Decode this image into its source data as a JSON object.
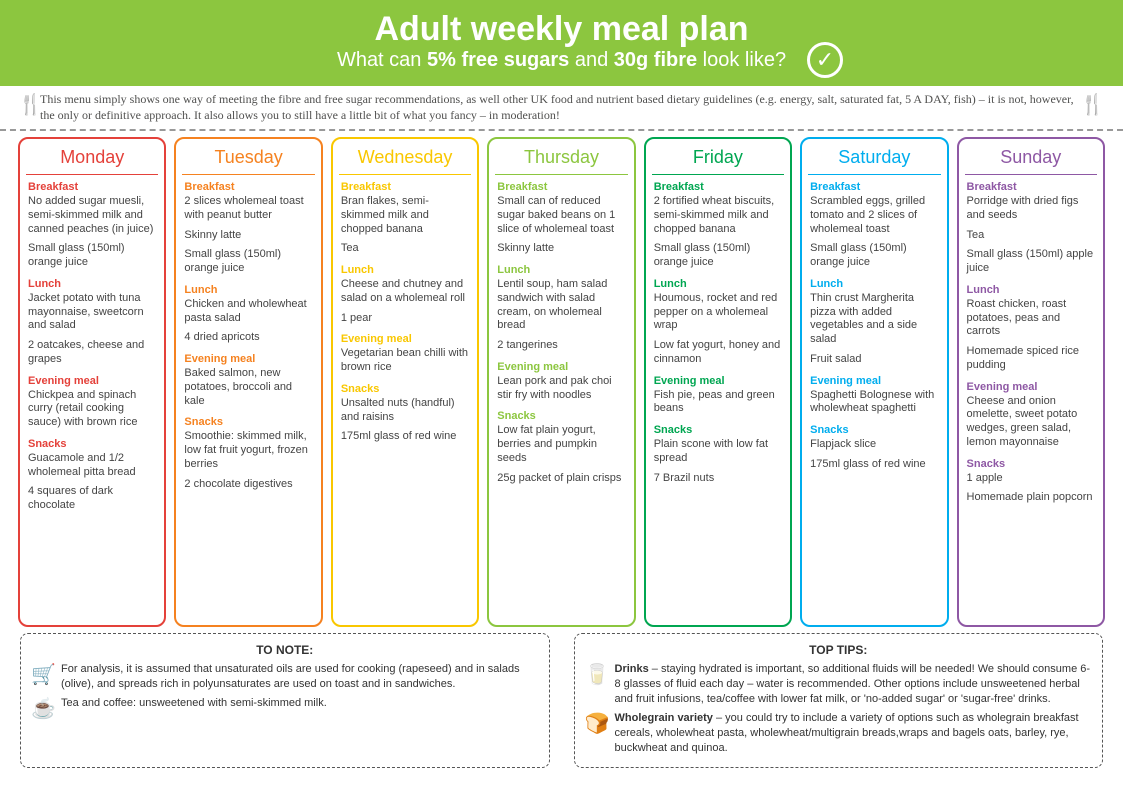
{
  "header": {
    "title": "Adult weekly meal plan",
    "subtitle_pre": "What can ",
    "subtitle_b1": "5% free sugars",
    "subtitle_mid": " and ",
    "subtitle_b2": "30g fibre",
    "subtitle_post": " look like?"
  },
  "intro": "This menu simply shows one way of meeting the fibre and free sugar recommendations, as well other UK food and nutrient based dietary guidelines (e.g. energy, salt, saturated fat, 5 A DAY, fish) – it is not, however, the only or definitive approach. It also allows you to still have a little bit of what you fancy – in moderation!",
  "section_labels": {
    "breakfast": "Breakfast",
    "lunch": "Lunch",
    "evening": "Evening meal",
    "snacks": "Snacks"
  },
  "days": [
    {
      "name": "Monday",
      "color": "#e4413a",
      "breakfast": [
        "No added sugar muesli, semi-skimmed milk and canned peaches (in juice)",
        "Small glass (150ml) orange juice"
      ],
      "lunch": [
        "Jacket potato with tuna mayonnaise, sweetcorn and salad",
        "2 oatcakes, cheese and grapes"
      ],
      "evening": [
        "Chickpea and spinach curry (retail cooking sauce) with brown rice"
      ],
      "snacks": [
        "Guacamole and 1/2 wholemeal pitta bread",
        "4 squares of dark chocolate"
      ]
    },
    {
      "name": "Tuesday",
      "color": "#f58220",
      "breakfast": [
        "2 slices wholemeal toast with peanut butter",
        "Skinny latte",
        "Small glass (150ml) orange juice"
      ],
      "lunch": [
        "Chicken and wholewheat pasta salad",
        "4 dried apricots"
      ],
      "evening": [
        "Baked salmon, new potatoes, broccoli and kale"
      ],
      "snacks": [
        "Smoothie: skimmed milk, low fat fruit yogurt, frozen berries",
        "2 chocolate digestives"
      ]
    },
    {
      "name": "Wednesday",
      "color": "#f9c700",
      "breakfast": [
        "Bran flakes, semi-skimmed milk and chopped banana",
        "Tea"
      ],
      "lunch": [
        "Cheese and chutney and salad on a wholemeal roll",
        "1 pear"
      ],
      "evening": [
        "Vegetarian bean chilli with brown rice"
      ],
      "snacks": [
        "Unsalted nuts (handful) and raisins",
        "175ml glass of red wine"
      ]
    },
    {
      "name": "Thursday",
      "color": "#8cc63f",
      "breakfast": [
        "Small can of reduced sugar baked beans on 1 slice of wholemeal toast",
        "Skinny latte"
      ],
      "lunch": [
        "Lentil soup, ham salad sandwich with salad cream, on wholemeal bread",
        "2 tangerines"
      ],
      "evening": [
        "Lean pork and pak choi stir fry with noodles"
      ],
      "snacks": [
        "Low fat plain yogurt, berries and pumpkin seeds",
        "25g packet of plain crisps"
      ]
    },
    {
      "name": "Friday",
      "color": "#00a651",
      "breakfast": [
        "2 fortified wheat biscuits, semi-skimmed milk and chopped banana",
        "Small glass (150ml) orange juice"
      ],
      "lunch": [
        "Houmous, rocket and red pepper on a wholemeal wrap",
        "Low fat yogurt, honey and cinnamon"
      ],
      "evening": [
        "Fish pie, peas and green beans"
      ],
      "snacks": [
        "Plain scone with low fat spread",
        "7 Brazil nuts"
      ]
    },
    {
      "name": "Saturday",
      "color": "#00adee",
      "breakfast": [
        "Scrambled eggs, grilled tomato and 2 slices of wholemeal toast",
        "Small glass (150ml) orange juice"
      ],
      "lunch": [
        "Thin crust Margherita pizza with added vegetables and a side salad",
        "Fruit salad"
      ],
      "evening": [
        "Spaghetti Bolognese with wholewheat spaghetti"
      ],
      "snacks": [
        "Flapjack slice",
        "175ml glass of red wine"
      ]
    },
    {
      "name": "Sunday",
      "color": "#8e58a4",
      "breakfast": [
        "Porridge with dried figs and seeds",
        "Tea",
        "Small glass (150ml) apple juice"
      ],
      "lunch": [
        "Roast chicken, roast potatoes, peas and carrots",
        "Homemade spiced rice pudding"
      ],
      "evening": [
        "Cheese and onion omelette, sweet potato wedges, green salad, lemon mayonnaise"
      ],
      "snacks": [
        "1 apple",
        "Homemade plain popcorn"
      ]
    }
  ],
  "note": {
    "title": "TO NOTE:",
    "n1": "For analysis, it is assumed that unsaturated oils are used for cooking (rapeseed) and in salads (olive), and spreads rich in polyunsaturates are used on toast and in sandwiches.",
    "n2": "Tea and coffee: unsweetened with semi-skimmed milk."
  },
  "tips": {
    "title": "TOP TIPS:",
    "t1_b": "Drinks",
    "t1": " – staying hydrated is important, so additional fluids will be needed! We should consume 6-8 glasses of fluid each day – water is recommended. Other options include unsweetened herbal and fruit infusions, tea/coffee with lower fat milk, or 'no-added sugar' or 'sugar-free' drinks.",
    "t2_b": "Wholegrain variety",
    "t2": " – you could try to include a variety of options such as wholegrain breakfast cereals, wholewheat pasta, wholewheat/multigrain breads,wraps and bagels oats, barley, rye, buckwheat and quinoa."
  }
}
